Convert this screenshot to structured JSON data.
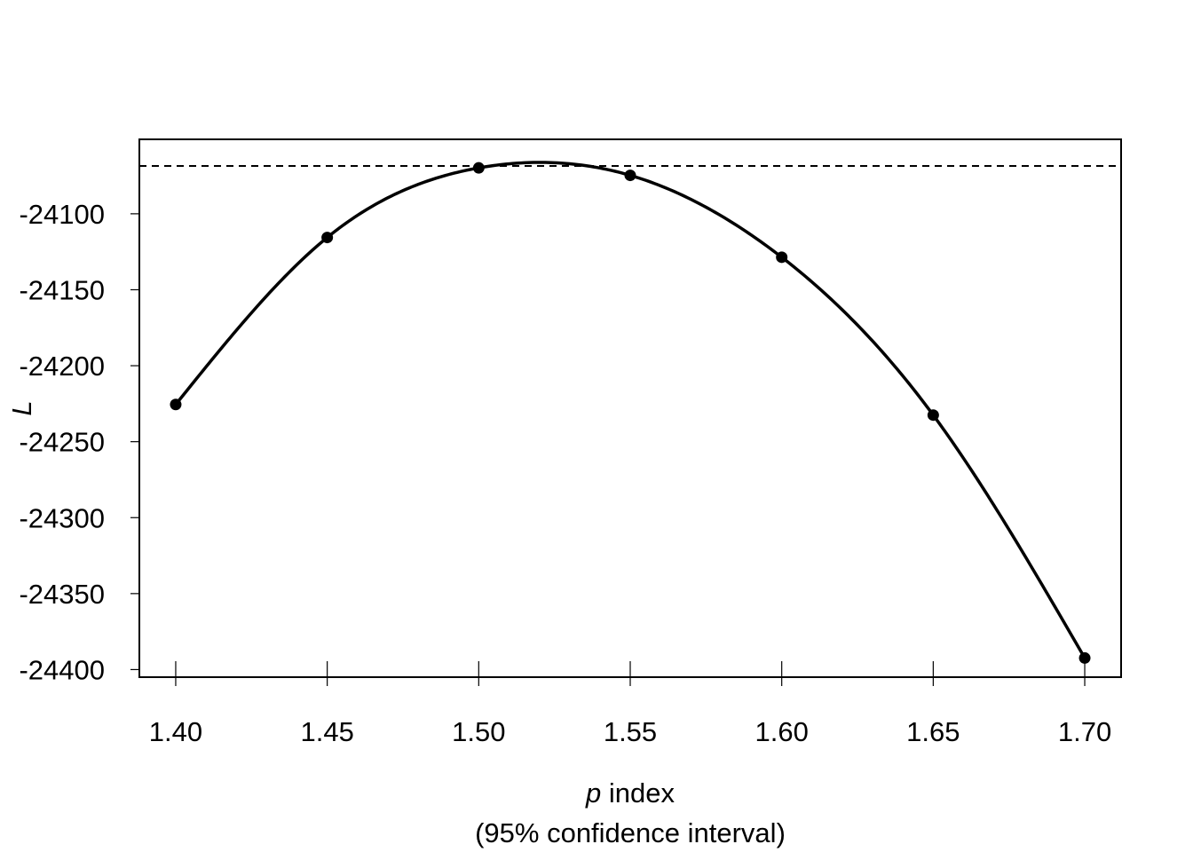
{
  "chart_data": {
    "type": "line",
    "title": "",
    "xlabel": {
      "symbol": "p",
      "text": " index",
      "subtitle": "(95% confidence interval)"
    },
    "ylabel": "L",
    "x_ticks": [
      "1.40",
      "1.45",
      "1.50",
      "1.55",
      "1.60",
      "1.65",
      "1.70"
    ],
    "y_ticks": [
      "-24100",
      "-24150",
      "-24200",
      "-24250",
      "-24300",
      "-24350",
      "-24400"
    ],
    "xlim": [
      1.388,
      1.712
    ],
    "ylim": [
      -24405,
      -24051
    ],
    "grid": false,
    "legend": "none",
    "series": [
      {
        "x": [
          1.4,
          1.45,
          1.5,
          1.55,
          1.6,
          1.65,
          1.7
        ],
        "y": [
          -24225.5,
          -24115.6,
          -24069.8,
          -24074.7,
          -24128.6,
          -24232.5,
          -24392.4
        ]
      }
    ],
    "reference_line": {
      "y": -24068.5,
      "style": "dashed"
    },
    "colors": {
      "line": "#000000",
      "points": "#000000",
      "axes": "#000000"
    }
  }
}
